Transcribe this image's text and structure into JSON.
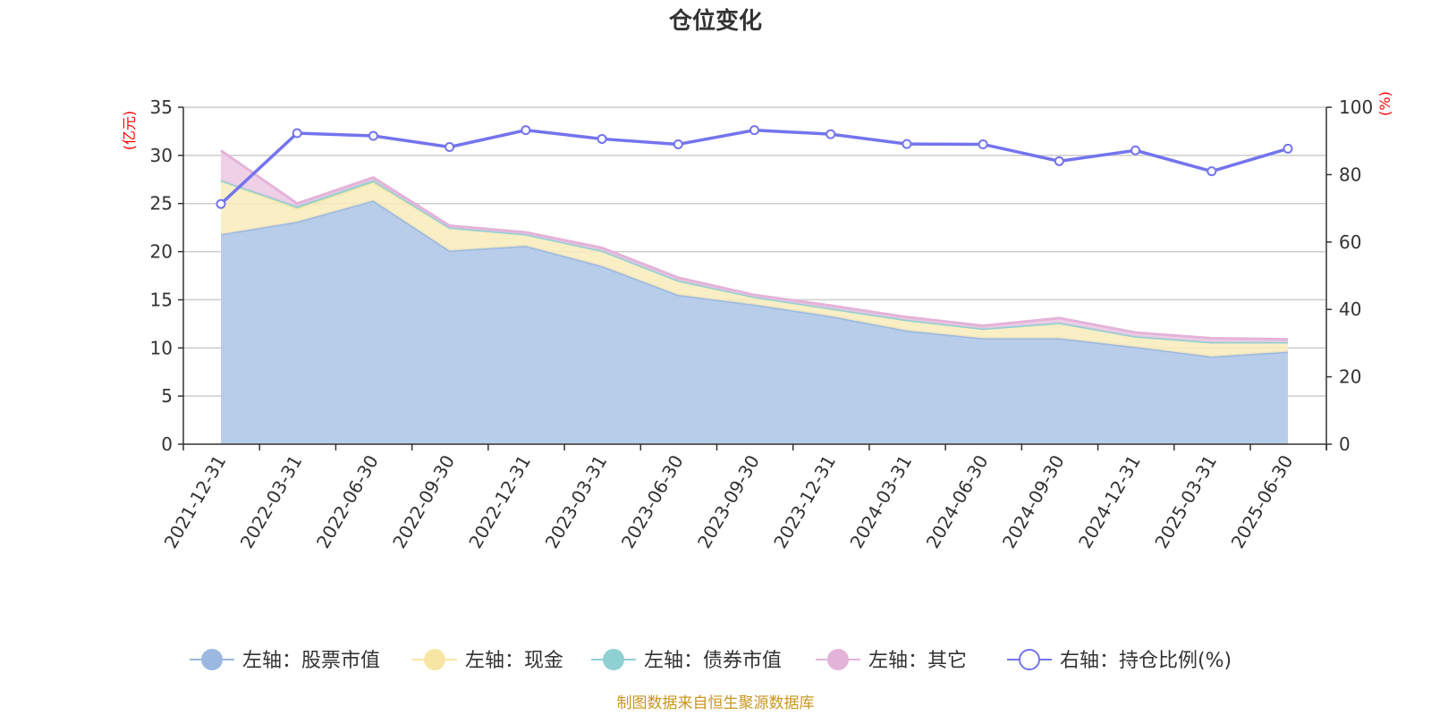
{
  "colors": {
    "stock": "#9ab8e0",
    "stock_fill": "#b8cdea",
    "cash": "#f7e6a3",
    "cash_fill": "#f9ebbb",
    "bond": "#8fd0d2",
    "other": "#e4b3d9",
    "other_fill": "#ecc8e3",
    "ratio": "#7474ee",
    "axis_unit": "#ff0000",
    "footer": "#c8961e"
  },
  "chart_data": {
    "type": "area",
    "title": "仓位变化",
    "left_axis_label": "(亿元)",
    "right_axis_label": "(%)",
    "ylim_left": [
      0,
      35
    ],
    "yticks_left": [
      0,
      5,
      10,
      15,
      20,
      25,
      30,
      35
    ],
    "ylim_right": [
      0,
      100
    ],
    "yticks_right": [
      0,
      20,
      40,
      60,
      80,
      100
    ],
    "grid": true,
    "legend_position": "bottom",
    "categories": [
      "2021-12-31",
      "2022-03-31",
      "2022-06-30",
      "2022-09-30",
      "2022-12-31",
      "2023-03-31",
      "2023-06-30",
      "2023-09-30",
      "2023-12-31",
      "2024-03-31",
      "2024-06-30",
      "2024-09-30",
      "2024-12-31",
      "2025-03-31",
      "2025-06-30"
    ],
    "series": [
      {
        "name": "左轴：股票市值",
        "axis": "left",
        "stacked": true,
        "values": [
          21.8,
          23.1,
          25.3,
          20.1,
          20.6,
          18.5,
          15.5,
          14.5,
          13.3,
          11.8,
          11.0,
          11.0,
          10.1,
          9.1,
          9.6
        ]
      },
      {
        "name": "左轴：现金",
        "axis": "left",
        "stacked": true,
        "values": [
          5.6,
          1.4,
          1.9,
          2.4,
          1.2,
          1.6,
          1.5,
          0.8,
          0.8,
          1.1,
          1.0,
          1.6,
          1.1,
          1.5,
          1.0
        ]
      },
      {
        "name": "左轴：债券市值",
        "axis": "left",
        "stacked": true,
        "values": [
          0.0,
          0.2,
          0.2,
          0.0,
          0.0,
          0.0,
          0.0,
          0.0,
          0.0,
          0.0,
          0.0,
          0.0,
          0.0,
          0.0,
          0.0
        ]
      },
      {
        "name": "左轴：其它",
        "axis": "left",
        "stacked": true,
        "values": [
          3.1,
          0.3,
          0.3,
          0.2,
          0.2,
          0.3,
          0.3,
          0.2,
          0.3,
          0.3,
          0.3,
          0.5,
          0.4,
          0.4,
          0.3
        ]
      },
      {
        "name": "右轴：持仓比例(%)",
        "axis": "right",
        "type": "line",
        "values": [
          71.3,
          92.3,
          91.5,
          88.2,
          93.2,
          90.6,
          89.0,
          93.2,
          92.0,
          89.1,
          89.0,
          84.0,
          87.2,
          81.0,
          87.7
        ]
      }
    ],
    "footer": "制图数据来自恒生聚源数据库"
  }
}
